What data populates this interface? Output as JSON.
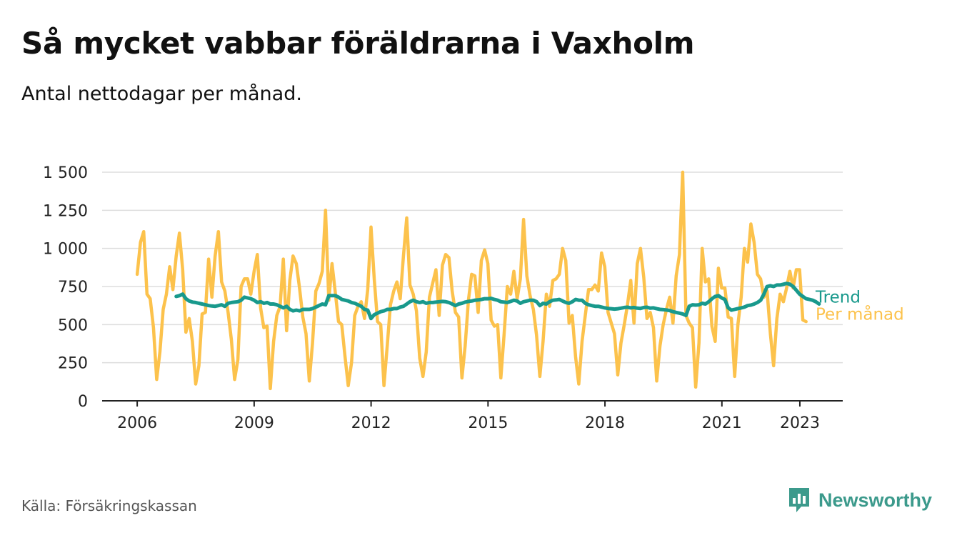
{
  "title": "Så mycket vabbar föräldrarna i Vaxholm",
  "subtitle": "Antal nettodagar per månad.",
  "source": "Källa: Försäkringskassan",
  "brand": {
    "name": "Newsworthy",
    "icon": "bar-chart-speech-bubble-icon"
  },
  "colors": {
    "monthly": "#fcc24c",
    "trend": "#18998c",
    "grid": "#dddddd",
    "axis": "#222222"
  },
  "chart_data": {
    "type": "line",
    "y_ticks": [
      0,
      250,
      500,
      750,
      1000,
      1250,
      1500
    ],
    "y_tick_labels": [
      "0",
      "250",
      "500",
      "750",
      "1 000",
      "1 250",
      "1 500"
    ],
    "x_ticks": [
      2006,
      2009,
      2012,
      2015,
      2018,
      2021,
      2023
    ],
    "x_tick_labels": [
      "2006",
      "2009",
      "2012",
      "2015",
      "2018",
      "2021",
      "2023"
    ],
    "ylim": [
      0,
      1500
    ],
    "xlim": [
      2005.1,
      2024.1
    ],
    "grid": "horizontal",
    "x_unit": "year",
    "series": [
      {
        "name": "Per månad",
        "x_start": 2006.0,
        "step": 0.0833,
        "values": [
          830,
          1040,
          1110,
          700,
          670,
          480,
          140,
          320,
          600,
          700,
          880,
          730,
          950,
          1100,
          860,
          450,
          540,
          390,
          110,
          230,
          570,
          580,
          930,
          680,
          950,
          1110,
          780,
          720,
          580,
          400,
          140,
          270,
          750,
          800,
          800,
          700,
          850,
          960,
          610,
          480,
          490,
          80,
          390,
          560,
          620,
          930,
          460,
          790,
          950,
          900,
          740,
          550,
          440,
          130,
          380,
          720,
          770,
          850,
          1250,
          660,
          900,
          710,
          520,
          500,
          290,
          100,
          250,
          560,
          620,
          650,
          540,
          730,
          1140,
          800,
          520,
          500,
          100,
          360,
          630,
          720,
          780,
          670,
          950,
          1200,
          760,
          700,
          590,
          280,
          160,
          320,
          680,
          770,
          860,
          560,
          890,
          960,
          940,
          720,
          580,
          550,
          150,
          360,
          660,
          830,
          820,
          580,
          920,
          990,
          900,
          530,
          490,
          500,
          150,
          440,
          750,
          700,
          850,
          670,
          800,
          1190,
          820,
          690,
          600,
          430,
          160,
          390,
          700,
          620,
          790,
          800,
          830,
          1000,
          920,
          510,
          560,
          290,
          110,
          390,
          560,
          730,
          730,
          760,
          720,
          970,
          880,
          580,
          510,
          440,
          170,
          380,
          500,
          630,
          790,
          510,
          900,
          1000,
          810,
          540,
          580,
          480,
          130,
          360,
          500,
          600,
          680,
          510,
          820,
          960,
          1500,
          560,
          510,
          480,
          90,
          380,
          1000,
          780,
          800,
          490,
          390,
          870,
          740,
          740,
          550,
          540,
          160,
          500,
          680,
          1000,
          910,
          1160,
          1040,
          830,
          800,
          680,
          720,
          440,
          230,
          540,
          700,
          650,
          740,
          850,
          740,
          860,
          860,
          530,
          520
        ]
      },
      {
        "name": "Trend",
        "x_start": 2007.0,
        "step": 0.0833,
        "values": [
          685,
          690,
          700,
          670,
          655,
          648,
          645,
          640,
          635,
          630,
          625,
          622,
          620,
          625,
          630,
          620,
          640,
          645,
          648,
          650,
          660,
          680,
          675,
          670,
          660,
          645,
          650,
          640,
          645,
          635,
          635,
          630,
          620,
          610,
          620,
          600,
          590,
          595,
          590,
          600,
          600,
          600,
          605,
          615,
          625,
          635,
          630,
          690,
          690,
          690,
          680,
          665,
          660,
          655,
          645,
          640,
          630,
          620,
          600,
          595,
          540,
          565,
          575,
          585,
          590,
          600,
          600,
          605,
          605,
          615,
          620,
          635,
          650,
          660,
          650,
          645,
          650,
          640,
          645,
          645,
          648,
          650,
          652,
          650,
          645,
          635,
          625,
          635,
          640,
          648,
          652,
          655,
          660,
          662,
          665,
          670,
          670,
          672,
          665,
          660,
          650,
          648,
          645,
          652,
          660,
          655,
          640,
          650,
          655,
          660,
          660,
          650,
          625,
          640,
          635,
          650,
          660,
          662,
          665,
          655,
          645,
          640,
          650,
          665,
          660,
          660,
          640,
          630,
          625,
          620,
          620,
          615,
          610,
          606,
          604,
          602,
          604,
          608,
          612,
          614,
          610,
          612,
          608,
          606,
          612,
          614,
          608,
          610,
          604,
          600,
          598,
          596,
          592,
          585,
          580,
          575,
          570,
          560,
          620,
          630,
          628,
          630,
          640,
          635,
          650,
          670,
          685,
          690,
          675,
          665,
          610,
          595,
          600,
          605,
          610,
          615,
          625,
          628,
          635,
          645,
          660,
          700,
          750,
          755,
          750,
          760,
          760,
          765,
          770,
          765,
          750,
          725,
          700,
          685,
          670,
          665,
          660,
          650,
          635
        ]
      }
    ],
    "series_labels": [
      "Trend",
      "Per månad"
    ]
  }
}
